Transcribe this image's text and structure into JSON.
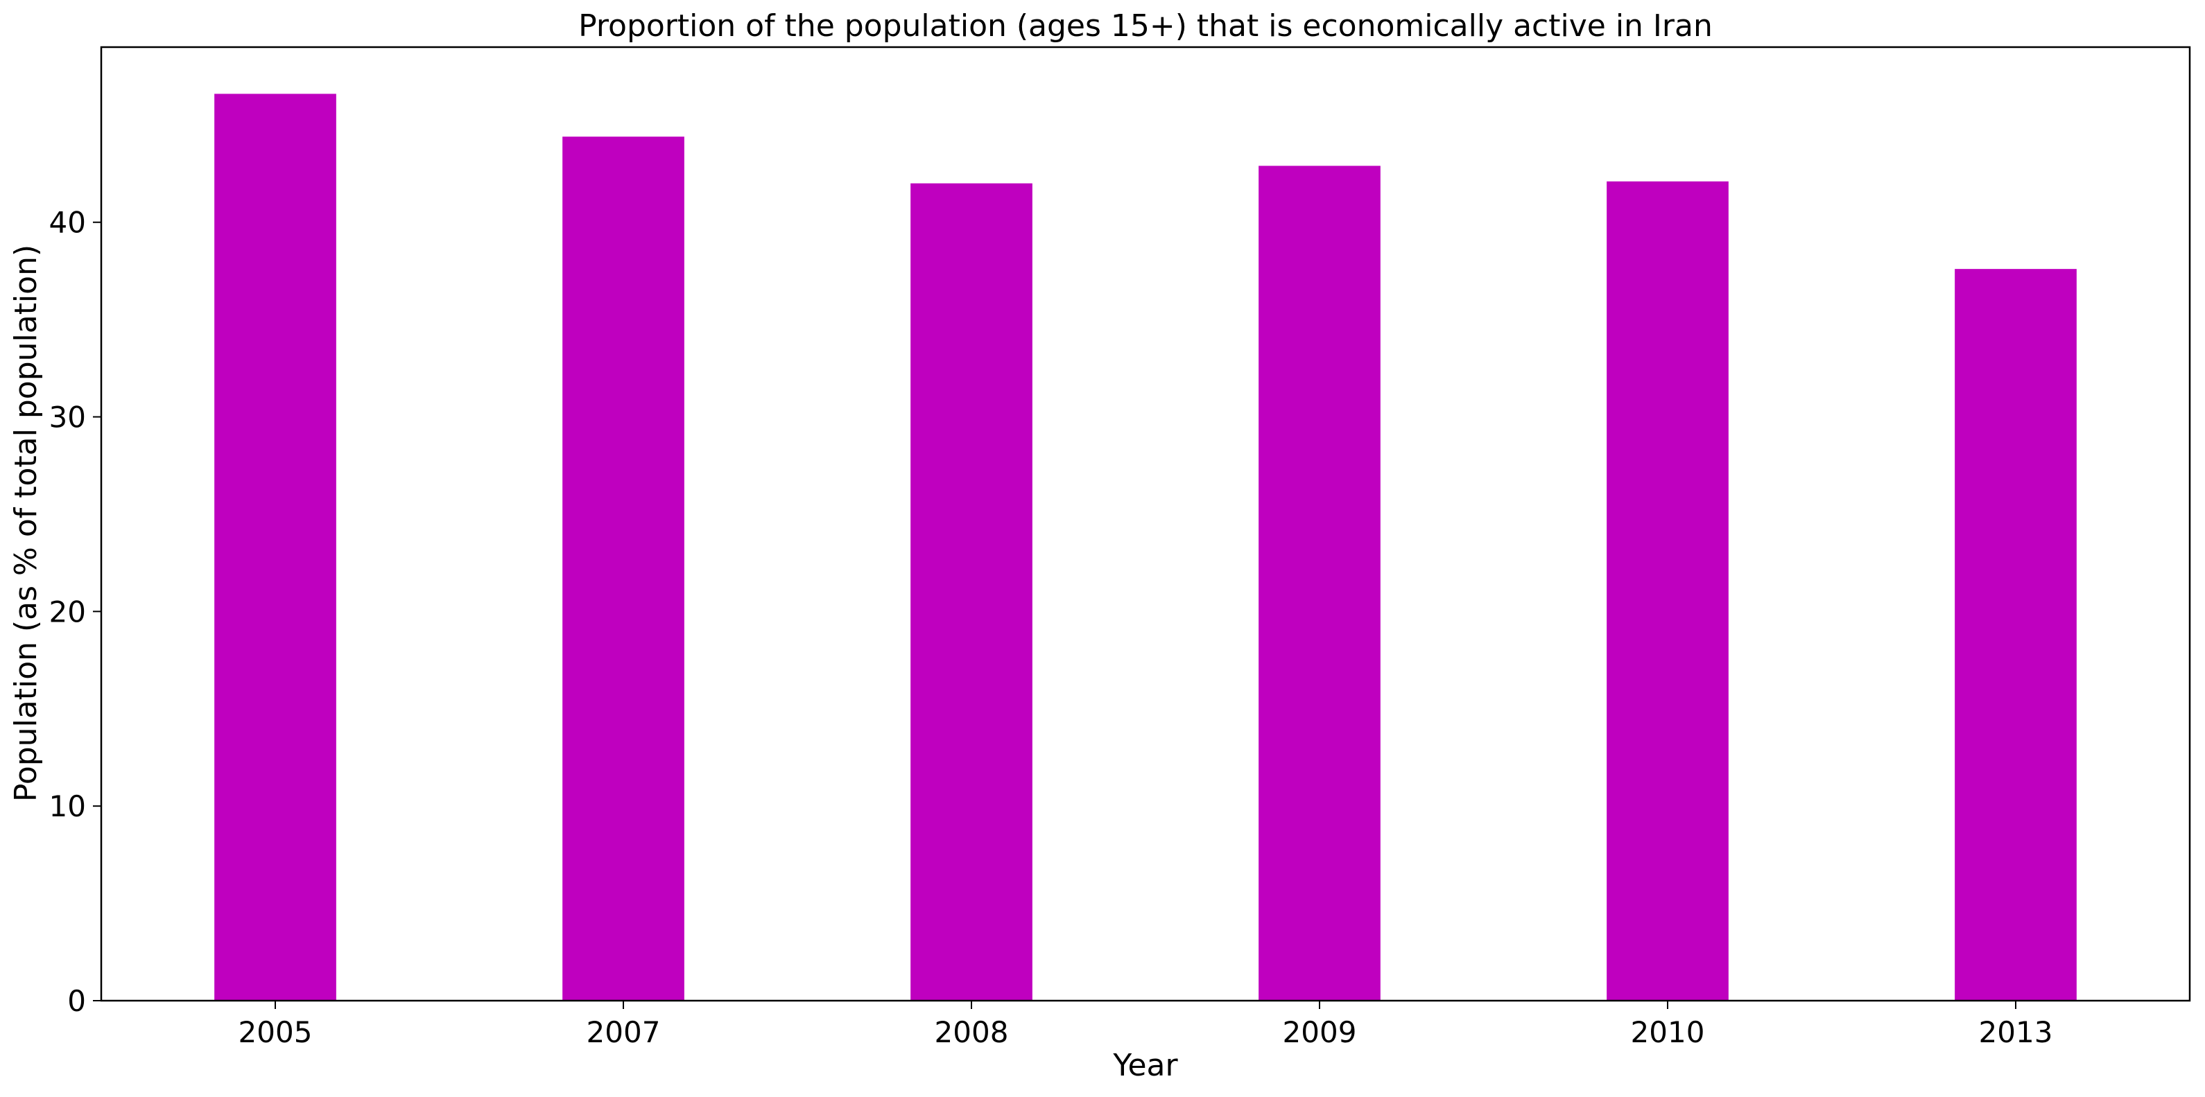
{
  "chart_data": {
    "type": "bar",
    "title": "Proportion of the population (ages 15+) that is economically active in Iran",
    "xlabel": "Year",
    "ylabel": "Population (as % of total population)",
    "categories": [
      "2005",
      "2007",
      "2008",
      "2009",
      "2010",
      "2013"
    ],
    "series": [
      {
        "values": [
          46.6,
          44.4,
          42.0,
          42.9,
          42.1,
          37.6
        ],
        "color": "#bf00bf"
      }
    ],
    "ylim": [
      0,
      49
    ],
    "yticks": [
      0,
      10,
      20,
      30,
      40
    ],
    "grid": false,
    "legend": "none"
  }
}
